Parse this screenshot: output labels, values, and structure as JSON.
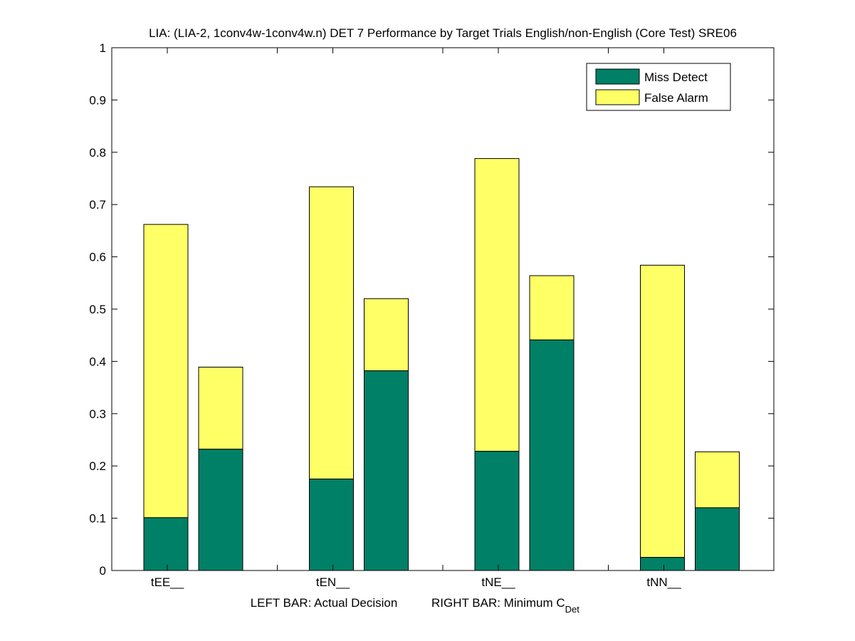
{
  "chart_data": {
    "type": "bar",
    "stacked": true,
    "title": "LIA: (LIA-2, 1conv4w-1conv4w.n) DET 7 Performance by Target Trials English/non-English (Core Test) SRE06",
    "xlabel": {
      "left": "LEFT BAR: Actual Decision",
      "right_prefix": "RIGHT BAR: Minimum C",
      "right_subscript": "Det"
    },
    "ylim": [
      0,
      1
    ],
    "yticks": [
      "0",
      "0.1",
      "0.2",
      "0.3",
      "0.4",
      "0.5",
      "0.6",
      "0.7",
      "0.8",
      "0.9",
      "1"
    ],
    "categories": [
      "tEE__",
      "tEN__",
      "tNE__",
      "tNN__"
    ],
    "bars_per_category": [
      "Actual Decision",
      "Minimum C_Det"
    ],
    "series": [
      {
        "name": "Miss Detect",
        "color": "#008066",
        "actual": [
          0.101,
          0.175,
          0.228,
          0.025
        ],
        "minimum": [
          0.232,
          0.382,
          0.441,
          0.12
        ]
      },
      {
        "name": "False Alarm",
        "color": "#ffff66",
        "actual": [
          0.561,
          0.559,
          0.56,
          0.559
        ],
        "minimum": [
          0.157,
          0.138,
          0.123,
          0.107
        ]
      }
    ],
    "legend": {
      "position": "top-right"
    },
    "grid": false
  }
}
